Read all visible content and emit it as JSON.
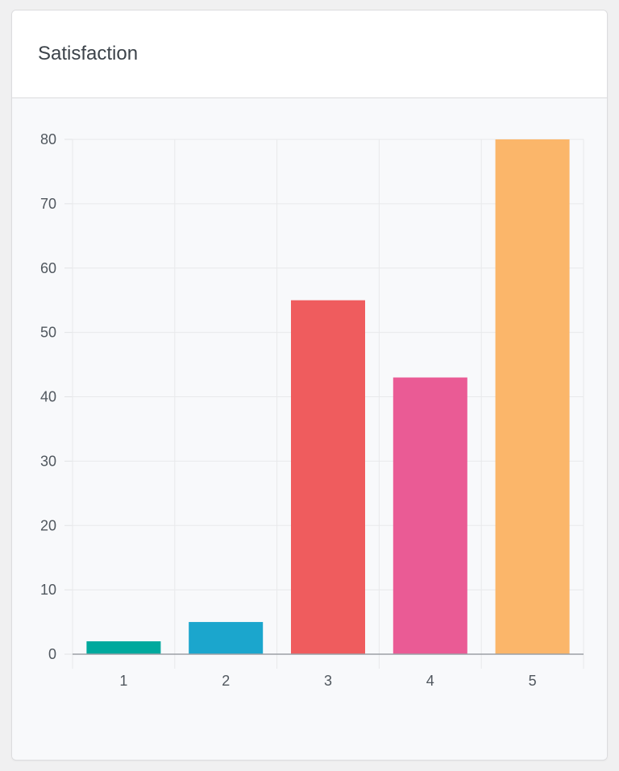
{
  "card": {
    "title": "Satisfaction"
  },
  "chart_data": {
    "type": "bar",
    "title": "Satisfaction",
    "categories": [
      "1",
      "2",
      "3",
      "4",
      "5"
    ],
    "values": [
      2,
      5,
      55,
      43,
      80
    ],
    "colors": [
      "#00a99d",
      "#1ba6cd",
      "#ef5c5e",
      "#ea5b95",
      "#fbb66a"
    ],
    "ylim": [
      0,
      80
    ],
    "yticks": [
      0,
      10,
      20,
      30,
      40,
      50,
      60,
      70,
      80
    ],
    "grid": true,
    "legend": "none"
  }
}
